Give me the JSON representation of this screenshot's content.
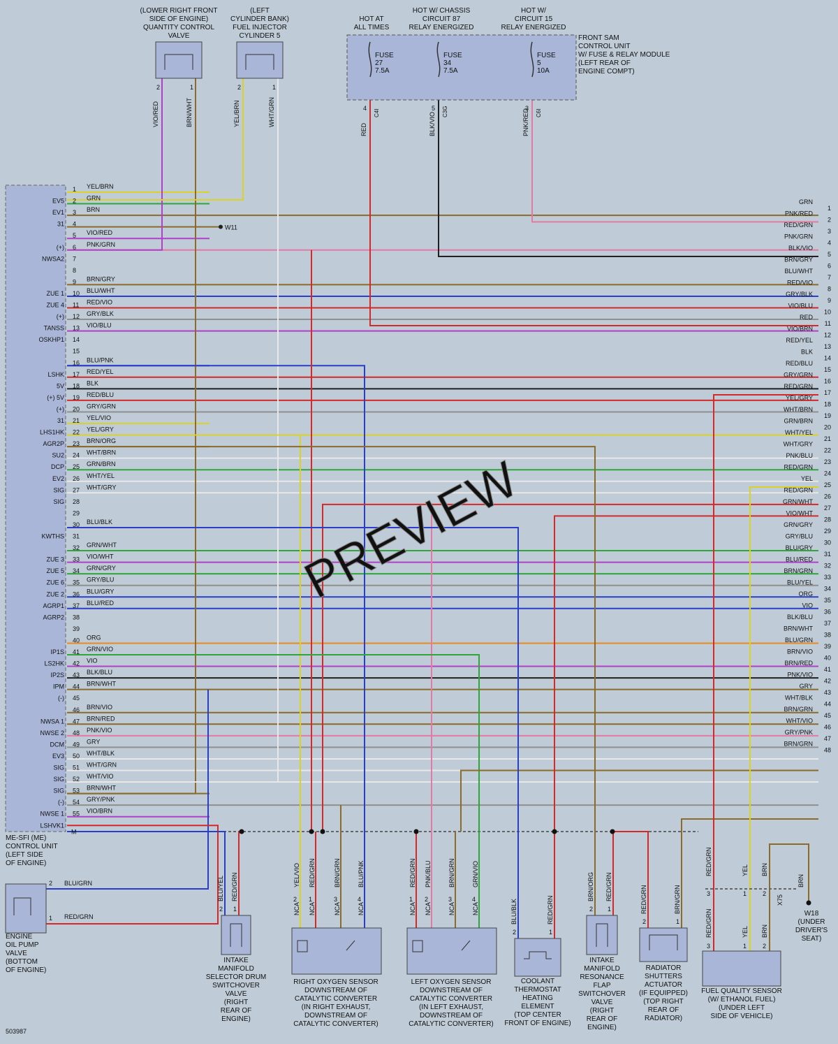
{
  "diagram_id": "503987",
  "watermark": "PREVIEW",
  "colors": {
    "YEL": "#d8d22a",
    "GRN": "#2fa63a",
    "BRN": "#8a6b2c",
    "VIO": "#b040c8",
    "PNK": "#e47aa4",
    "BLU": "#2b3ec8",
    "RED": "#d22a2a",
    "GRY": "#8f8f8f",
    "BLK": "#202020",
    "WHT": "#e8e8e8",
    "ORG": "#e88a1e"
  },
  "ecu": {
    "title_lines": [
      "ME-SFI (ME)",
      "CONTROL UNIT",
      "(LEFT SIDE",
      "OF ENGINE)"
    ],
    "m_label": "M",
    "pins": [
      {
        "n": "1",
        "sig": "",
        "wire": "YEL/BRN"
      },
      {
        "n": "2",
        "sig": "EV5",
        "wire": "GRN"
      },
      {
        "n": "3",
        "sig": "EV1",
        "wire": "BRN"
      },
      {
        "n": "4",
        "sig": "31",
        "wire": ""
      },
      {
        "n": "5",
        "sig": "",
        "wire": "VIO/RED"
      },
      {
        "n": "6",
        "sig": "(+)",
        "wire": "PNK/GRN"
      },
      {
        "n": "7",
        "sig": "NWSA2",
        "wire": ""
      },
      {
        "n": "8",
        "sig": "",
        "wire": ""
      },
      {
        "n": "9",
        "sig": "",
        "wire": "BRN/GRY"
      },
      {
        "n": "10",
        "sig": "ZUE 1",
        "wire": "BLU/WHT"
      },
      {
        "n": "11",
        "sig": "ZUE 4",
        "wire": "RED/VIO"
      },
      {
        "n": "12",
        "sig": "(+)",
        "wire": "GRY/BLK"
      },
      {
        "n": "13",
        "sig": "TANSS",
        "wire": "VIO/BLU"
      },
      {
        "n": "14",
        "sig": "OSKHP1",
        "wire": ""
      },
      {
        "n": "15",
        "sig": "",
        "wire": ""
      },
      {
        "n": "16",
        "sig": "",
        "wire": "BLU/PNK"
      },
      {
        "n": "17",
        "sig": "LSHK",
        "wire": "RED/YEL"
      },
      {
        "n": "18",
        "sig": "5V",
        "wire": "BLK"
      },
      {
        "n": "19",
        "sig": "(+) 5V",
        "wire": "RED/BLU"
      },
      {
        "n": "20",
        "sig": "(+)",
        "wire": "GRY/GRN"
      },
      {
        "n": "21",
        "sig": "31",
        "wire": "YEL/VIO"
      },
      {
        "n": "22",
        "sig": "LHS1HK",
        "wire": "YEL/GRY"
      },
      {
        "n": "23",
        "sig": "AGR2P",
        "wire": "BRN/ORG"
      },
      {
        "n": "24",
        "sig": "SU2",
        "wire": "WHT/BRN"
      },
      {
        "n": "25",
        "sig": "DCP",
        "wire": "GRN/BRN"
      },
      {
        "n": "26",
        "sig": "EV2",
        "wire": "WHT/YEL"
      },
      {
        "n": "27",
        "sig": "SIG",
        "wire": "WHT/GRY"
      },
      {
        "n": "28",
        "sig": "SIG",
        "wire": ""
      },
      {
        "n": "29",
        "sig": "",
        "wire": ""
      },
      {
        "n": "30",
        "sig": "",
        "wire": "BLU/BLK"
      },
      {
        "n": "31",
        "sig": "KWTHS",
        "wire": ""
      },
      {
        "n": "32",
        "sig": "",
        "wire": "GRN/WHT"
      },
      {
        "n": "33",
        "sig": "ZUE 3",
        "wire": "VIO/WHT"
      },
      {
        "n": "34",
        "sig": "ZUE 5",
        "wire": "GRN/GRY"
      },
      {
        "n": "35",
        "sig": "ZUE 6",
        "wire": "GRY/BLU"
      },
      {
        "n": "36",
        "sig": "ZUE 2",
        "wire": "BLU/GRY"
      },
      {
        "n": "37",
        "sig": "AGRP1",
        "wire": "BLU/RED"
      },
      {
        "n": "38",
        "sig": "AGRP2",
        "wire": ""
      },
      {
        "n": "39",
        "sig": "",
        "wire": ""
      },
      {
        "n": "40",
        "sig": "",
        "wire": "ORG"
      },
      {
        "n": "41",
        "sig": "IP1S",
        "wire": "GRN/VIO"
      },
      {
        "n": "42",
        "sig": "LS2HK",
        "wire": "VIO"
      },
      {
        "n": "43",
        "sig": "IP2S",
        "wire": "BLK/BLU"
      },
      {
        "n": "44",
        "sig": "IPM",
        "wire": "BRN/WHT"
      },
      {
        "n": "45",
        "sig": "(-)",
        "wire": ""
      },
      {
        "n": "46",
        "sig": "",
        "wire": "BRN/VIO"
      },
      {
        "n": "47",
        "sig": "NWSA 1",
        "wire": "BRN/RED"
      },
      {
        "n": "48",
        "sig": "NWSE 2",
        "wire": "PNK/VIO"
      },
      {
        "n": "49",
        "sig": "DCM",
        "wire": "GRY"
      },
      {
        "n": "50",
        "sig": "EV3",
        "wire": "WHT/BLK"
      },
      {
        "n": "51",
        "sig": "SIG",
        "wire": "WHT/GRN"
      },
      {
        "n": "52",
        "sig": "SIG",
        "wire": "WHT/VIO"
      },
      {
        "n": "53",
        "sig": "SIG",
        "wire": "BRN/WHT"
      },
      {
        "n": "54",
        "sig": "(-)",
        "wire": "GRY/PNK"
      },
      {
        "n": "55",
        "sig": "NWSE 1",
        "wire": "VIO/BRN"
      },
      {
        "n": "",
        "sig": "LSHVK1",
        "wire": ""
      }
    ]
  },
  "ground_w11": "W11",
  "right_connector": [
    {
      "n": "1",
      "wire": "GRN"
    },
    {
      "n": "2",
      "wire": "PNK/RED"
    },
    {
      "n": "3",
      "wire": "RED/GRN"
    },
    {
      "n": "4",
      "wire": "PNK/GRN"
    },
    {
      "n": "5",
      "wire": "BLK/VIO"
    },
    {
      "n": "6",
      "wire": "BRN/GRY"
    },
    {
      "n": "7",
      "wire": "BLU/WHT"
    },
    {
      "n": "8",
      "wire": "RED/VIO"
    },
    {
      "n": "9",
      "wire": "GRY/BLK"
    },
    {
      "n": "10",
      "wire": "VIO/BLU"
    },
    {
      "n": "11",
      "wire": "RED"
    },
    {
      "n": "12",
      "wire": "VIO/BRN"
    },
    {
      "n": "13",
      "wire": "RED/YEL"
    },
    {
      "n": "14",
      "wire": "BLK"
    },
    {
      "n": "15",
      "wire": "RED/BLU"
    },
    {
      "n": "16",
      "wire": "GRY/GRN"
    },
    {
      "n": "17",
      "wire": "RED/GRN"
    },
    {
      "n": "18",
      "wire": "YEL/GRY"
    },
    {
      "n": "19",
      "wire": "WHT/BRN"
    },
    {
      "n": "20",
      "wire": "GRN/BRN"
    },
    {
      "n": "21",
      "wire": "WHT/YEL"
    },
    {
      "n": "22",
      "wire": "WHT/GRY"
    },
    {
      "n": "23",
      "wire": "PNK/BLU"
    },
    {
      "n": "24",
      "wire": "RED/GRN"
    },
    {
      "n": "25",
      "wire": "YEL"
    },
    {
      "n": "26",
      "wire": "RED/GRN"
    },
    {
      "n": "27",
      "wire": "GRN/WHT"
    },
    {
      "n": "28",
      "wire": "VIO/WHT"
    },
    {
      "n": "29",
      "wire": "GRN/GRY"
    },
    {
      "n": "30",
      "wire": "GRY/BLU"
    },
    {
      "n": "31",
      "wire": "BLU/GRY"
    },
    {
      "n": "32",
      "wire": "BLU/RED"
    },
    {
      "n": "33",
      "wire": "BRN/GRN"
    },
    {
      "n": "34",
      "wire": "BLU/YEL"
    },
    {
      "n": "35",
      "wire": "ORG"
    },
    {
      "n": "36",
      "wire": "VIO"
    },
    {
      "n": "37",
      "wire": "BLK/BLU"
    },
    {
      "n": "38",
      "wire": "BRN/WHT"
    },
    {
      "n": "39",
      "wire": "BLU/GRN"
    },
    {
      "n": "40",
      "wire": "BRN/VIO"
    },
    {
      "n": "41",
      "wire": "BRN/RED"
    },
    {
      "n": "42",
      "wire": "PNK/VIO"
    },
    {
      "n": "43",
      "wire": "GRY"
    },
    {
      "n": "44",
      "wire": "WHT/BLK"
    },
    {
      "n": "45",
      "wire": "BRN/GRN"
    },
    {
      "n": "46",
      "wire": "WHT/VIO"
    },
    {
      "n": "47",
      "wire": "GRY/PNK"
    },
    {
      "n": "48",
      "wire": "BRN/GRN"
    }
  ],
  "top_components": {
    "qcv": {
      "lines": [
        "(LOWER RIGHT FRONT",
        "SIDE OF ENGINE)",
        "QUANTITY CONTROL",
        "VALVE"
      ],
      "pins": [
        "2",
        "1"
      ],
      "wires": [
        "VIO/RED",
        "BRN/WHT"
      ]
    },
    "inj": {
      "lines": [
        "(LEFT",
        "CYLINDER BANK)",
        "FUEL INJECTOR",
        "CYLINDER 5"
      ],
      "pins": [
        "2",
        "1"
      ],
      "wires": [
        "YEL/BRN",
        "WHT/GRN"
      ]
    }
  },
  "sam": {
    "heads": [
      {
        "lines": [
          "HOT AT",
          "ALL TIMES"
        ]
      },
      {
        "lines": [
          "HOT W/ CHASSIS",
          "CIRCUIT 87",
          "RELAY ENERGIZED"
        ]
      },
      {
        "lines": [
          "HOT W/",
          "CIRCUIT 15",
          "RELAY ENERGIZED"
        ]
      }
    ],
    "title_lines": [
      "FRONT SAM",
      "CONTROL UNIT",
      "W/ FUSE & RELAY MODULE",
      "(LEFT REAR OF",
      "ENGINE COMPT)"
    ],
    "fuses": [
      {
        "lines": [
          "FUSE",
          "27",
          "7.5A"
        ],
        "pin": "4",
        "conn": "C4I",
        "wire": "RED"
      },
      {
        "lines": [
          "FUSE",
          "34",
          "7.5A"
        ],
        "pin": "5",
        "conn": "C3G",
        "wire": "BLK/VIO"
      },
      {
        "lines": [
          "FUSE",
          "5",
          "10A"
        ],
        "pin": "3",
        "conn": "C6I",
        "wire": "PNK/RED"
      }
    ]
  },
  "bottom_components": {
    "oil_pump": {
      "lines": [
        "ENGINE",
        "OIL PUMP",
        "VALVE",
        "(BOTTOM",
        "OF ENGINE)"
      ],
      "pins": [
        "2",
        "1"
      ],
      "wires": [
        "BLU/GRN",
        "RED/GRN"
      ]
    },
    "drum": {
      "lines": [
        "INTAKE",
        "MANIFOLD",
        "SELECTOR DRUM",
        "SWITCHOVER",
        "VALVE",
        "(RIGHT",
        "REAR OF",
        "ENGINE)"
      ],
      "pins": [
        "2",
        "1"
      ],
      "wires": [
        "BLU/YEL",
        "RED/GRN"
      ]
    },
    "o2_right": {
      "lines": [
        "RIGHT OXYGEN SENSOR",
        "DOWNSTREAM OF",
        "CATALYTIC CONVERTER",
        "(IN RIGHT EXHAUST,",
        "DOWNSTREAM OF",
        "CATALYTIC CONVERTER)"
      ],
      "pins": [
        "2",
        "1",
        "3",
        "4"
      ],
      "wires": [
        "YEL/VIO",
        "RED/GRN",
        "BRN/GRN",
        "BLU/PNK"
      ],
      "nca": "NCA"
    },
    "o2_left": {
      "lines": [
        "LEFT OXYGEN SENSOR",
        "DOWNSTREAM OF",
        "CATALYTIC CONVERTER",
        "(IN LEFT EXHAUST,",
        "DOWNSTREAM OF",
        "CATALYTIC CONVERTER)"
      ],
      "pins": [
        "1",
        "2",
        "3",
        "4"
      ],
      "wires": [
        "RED/GRN",
        "PNK/BLU",
        "BRN/GRN",
        "GRN/VIO"
      ],
      "nca": "NCA"
    },
    "thermostat": {
      "lines": [
        "COOLANT",
        "THERMOSTAT",
        "HEATING",
        "ELEMENT",
        "(TOP CENTER",
        "FRONT OF ENGINE)"
      ],
      "pins": [
        "2",
        "1"
      ],
      "wires": [
        "BLU/BLK",
        "RED/GRN"
      ]
    },
    "flap": {
      "lines": [
        "INTAKE",
        "MANIFOLD",
        "RESONANCE",
        "FLAP",
        "SWITCHOVER",
        "VALVE",
        "(RIGHT",
        "REAR OF",
        "ENGINE)"
      ],
      "pins": [
        "2",
        "1"
      ],
      "wires": [
        "BRN/ORG",
        "RED/GRN"
      ]
    },
    "shutter": {
      "lines": [
        "RADIATOR",
        "SHUTTERS",
        "ACTUATOR",
        "(IF EQUIPPED)",
        "(TOP RIGHT",
        "REAR OF",
        "RADIATOR)"
      ],
      "pins": [
        "2",
        "1"
      ],
      "wires": [
        "RED/GRN",
        "BRN/GRN"
      ]
    },
    "fuel_quality": {
      "lines": [
        "FUEL QUALITY SENSOR",
        "(W/ ETHANOL FUEL)",
        "(UNDER LEFT",
        "SIDE OF VEHICLE)"
      ],
      "pins": [
        "3",
        "1",
        "2"
      ],
      "wires": [
        "RED/GRN",
        "YEL",
        "BRN"
      ],
      "conn": "X75"
    },
    "w18": {
      "lines": [
        "W18",
        "(UNDER",
        "DRIVER'S",
        "SEAT)"
      ],
      "wire": "BRN"
    }
  }
}
